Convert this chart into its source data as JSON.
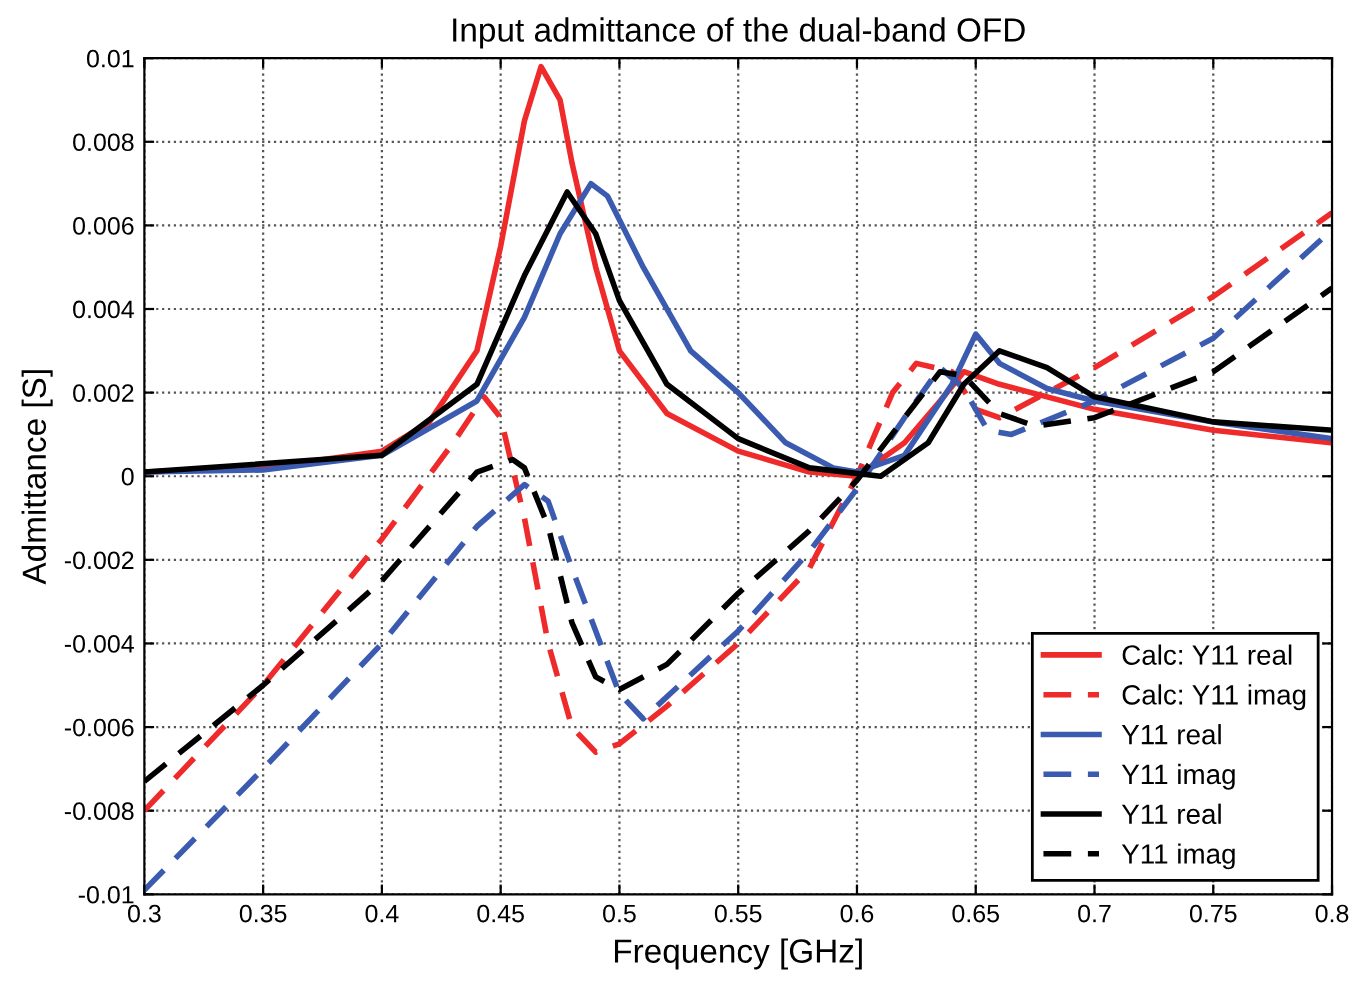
{
  "chart_data": {
    "type": "line",
    "title": "Input admittance of the dual-band OFD",
    "xlabel": "Frequency [GHz]",
    "ylabel": "Admittance [S]",
    "xlim": [
      0.3,
      0.8
    ],
    "ylim": [
      -0.01,
      0.01
    ],
    "xticks": [
      0.3,
      0.35,
      0.4,
      0.45,
      0.5,
      0.55,
      0.6,
      0.65,
      0.7,
      0.75,
      0.8
    ],
    "yticks": [
      {
        "value": -0.01,
        "label": "-0.01"
      },
      {
        "value": -0.008,
        "label": "-0.008"
      },
      {
        "value": -0.006,
        "label": "-0.006"
      },
      {
        "value": -0.004,
        "label": "-0.004"
      },
      {
        "value": -0.002,
        "label": "-0.002"
      },
      0,
      0.002,
      0.004,
      0.006,
      0.008,
      0.01
    ],
    "grid": true,
    "legend": "bottom right",
    "marker": "none",
    "series": [
      {
        "name": "Calc: Y11 real",
        "color": "#ee2a2a",
        "line_style": "solid",
        "x": [
          0.3,
          0.35,
          0.4,
          0.42,
          0.44,
          0.45,
          0.46,
          0.467,
          0.475,
          0.48,
          0.49,
          0.5,
          0.52,
          0.55,
          0.58,
          0.6,
          0.62,
          0.635,
          0.645,
          0.66,
          0.7,
          0.75,
          0.8
        ],
        "values": [
          0.0001,
          0.0002,
          0.0006,
          0.0013,
          0.003,
          0.0055,
          0.0085,
          0.0098,
          0.009,
          0.0075,
          0.005,
          0.003,
          0.0015,
          0.0006,
          0.0001,
          0.0,
          0.0008,
          0.0018,
          0.0025,
          0.0022,
          0.0016,
          0.0011,
          0.0008
        ]
      },
      {
        "name": "Calc: Y11 imag",
        "color": "#ee2a2a",
        "line_style": "dashed",
        "x": [
          0.3,
          0.35,
          0.4,
          0.43,
          0.443,
          0.45,
          0.46,
          0.47,
          0.48,
          0.49,
          0.5,
          0.52,
          0.55,
          0.58,
          0.6,
          0.615,
          0.625,
          0.64,
          0.65,
          0.66,
          0.7,
          0.75,
          0.8
        ],
        "values": [
          -0.008,
          -0.005,
          -0.0015,
          0.0008,
          0.0019,
          0.0014,
          -0.001,
          -0.004,
          -0.006,
          -0.0066,
          -0.0064,
          -0.0055,
          -0.004,
          -0.0022,
          0.0,
          0.002,
          0.0027,
          0.0025,
          0.0016,
          0.0014,
          0.0026,
          0.0043,
          0.0063
        ]
      },
      {
        "name": "Y11 real",
        "color": "#3b5bb0",
        "line_style": "solid",
        "x": [
          0.3,
          0.35,
          0.4,
          0.44,
          0.46,
          0.475,
          0.488,
          0.495,
          0.51,
          0.53,
          0.55,
          0.57,
          0.59,
          0.6,
          0.62,
          0.64,
          0.65,
          0.66,
          0.68,
          0.7,
          0.75,
          0.8
        ],
        "values": [
          0.0001,
          0.00015,
          0.0005,
          0.0018,
          0.0038,
          0.0058,
          0.007,
          0.0067,
          0.005,
          0.003,
          0.002,
          0.0008,
          0.0002,
          0.0001,
          0.0005,
          0.0022,
          0.0034,
          0.0027,
          0.0021,
          0.0018,
          0.0013,
          0.0009
        ]
      },
      {
        "name": "Y11 imag",
        "color": "#3b5bb0",
        "line_style": "dashed",
        "x": [
          0.3,
          0.35,
          0.4,
          0.44,
          0.46,
          0.47,
          0.48,
          0.5,
          0.51,
          0.55,
          0.58,
          0.6,
          0.62,
          0.635,
          0.645,
          0.655,
          0.665,
          0.7,
          0.75,
          0.8
        ],
        "values": [
          -0.0099,
          -0.007,
          -0.004,
          -0.0012,
          -0.0002,
          -0.0006,
          -0.0022,
          -0.0052,
          -0.0058,
          -0.0037,
          -0.0018,
          -0.0003,
          0.0014,
          0.0026,
          0.0021,
          0.0011,
          0.001,
          0.0018,
          0.0033,
          0.0059
        ]
      },
      {
        "name": "Y11 real",
        "color": "#000000",
        "line_style": "solid",
        "x": [
          0.3,
          0.4,
          0.44,
          0.46,
          0.478,
          0.49,
          0.5,
          0.52,
          0.55,
          0.58,
          0.61,
          0.63,
          0.645,
          0.66,
          0.68,
          0.7,
          0.75,
          0.8
        ],
        "values": [
          0.0001,
          0.0005,
          0.0022,
          0.0048,
          0.0068,
          0.0058,
          0.0042,
          0.0022,
          0.0009,
          0.0002,
          0.0,
          0.0008,
          0.0022,
          0.003,
          0.0026,
          0.0019,
          0.0013,
          0.0011
        ]
      },
      {
        "name": "Y11 imag",
        "color": "#000000",
        "line_style": "dashed",
        "x": [
          0.3,
          0.35,
          0.4,
          0.44,
          0.455,
          0.46,
          0.47,
          0.48,
          0.49,
          0.5,
          0.52,
          0.55,
          0.58,
          0.6,
          0.62,
          0.635,
          0.645,
          0.66,
          0.675,
          0.7,
          0.75,
          0.8
        ],
        "values": [
          -0.0073,
          -0.005,
          -0.0025,
          0.0001,
          0.0004,
          0.0002,
          -0.0012,
          -0.0035,
          -0.0048,
          -0.0051,
          -0.0045,
          -0.0028,
          -0.0013,
          -0.0001,
          0.0014,
          0.0025,
          0.0024,
          0.0015,
          0.0012,
          0.0014,
          0.0025,
          0.0045
        ]
      }
    ]
  }
}
